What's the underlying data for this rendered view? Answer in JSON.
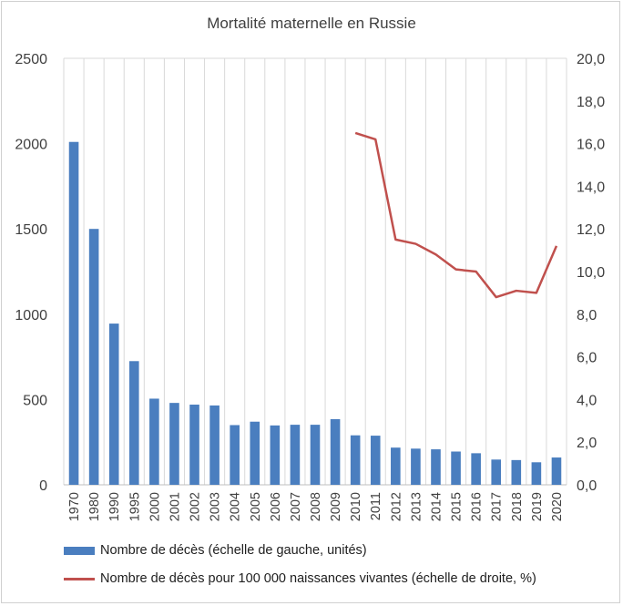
{
  "chart_data": {
    "type": "bar+line",
    "title": "Mortalité maternelle en Russie",
    "categories": [
      "1970",
      "1980",
      "1990",
      "1995",
      "2000",
      "2001",
      "2002",
      "2003",
      "2004",
      "2005",
      "2006",
      "2007",
      "2008",
      "2009",
      "2010",
      "2011",
      "2012",
      "2013",
      "2014",
      "2015",
      "2016",
      "2017",
      "2018",
      "2019",
      "2020"
    ],
    "series": [
      {
        "name": "Nombre de décès (échelle de gauche, unités)",
        "type": "bar",
        "axis": "left",
        "color": "#4a7ebf",
        "values": [
          2010,
          1500,
          945,
          725,
          505,
          480,
          470,
          465,
          350,
          370,
          348,
          352,
          352,
          385,
          290,
          288,
          218,
          212,
          208,
          195,
          185,
          148,
          145,
          132,
          160
        ]
      },
      {
        "name": "Nombre de décès pour 100 000 naissances vivantes (échelle de droite, %)",
        "type": "line",
        "axis": "right",
        "color": "#c0504d",
        "values": [
          null,
          null,
          null,
          null,
          null,
          null,
          null,
          null,
          null,
          null,
          null,
          null,
          null,
          null,
          16.5,
          16.2,
          11.5,
          11.3,
          10.8,
          10.1,
          10.0,
          8.8,
          9.1,
          9.0,
          11.2
        ]
      }
    ],
    "y_left": {
      "min": 0,
      "max": 2500,
      "ticks": [
        "0",
        "500",
        "1000",
        "1500",
        "2000",
        "2500"
      ]
    },
    "y_right": {
      "min": 0,
      "max": 20,
      "ticks": [
        "0,0",
        "2,0",
        "4,0",
        "6,0",
        "8,0",
        "10,0",
        "12,0",
        "14,0",
        "16,0",
        "18,0",
        "20,0"
      ]
    },
    "grid": "vertical",
    "legend_position": "bottom"
  }
}
